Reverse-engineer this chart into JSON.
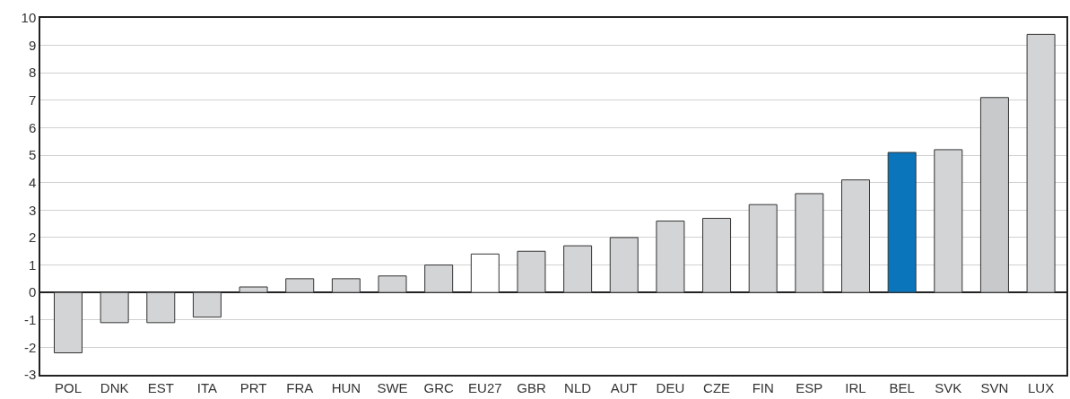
{
  "chart_data": {
    "type": "bar",
    "categories": [
      "POL",
      "DNK",
      "EST",
      "ITA",
      "PRT",
      "FRA",
      "HUN",
      "SWE",
      "GRC",
      "EU27",
      "GBR",
      "NLD",
      "AUT",
      "DEU",
      "CZE",
      "FIN",
      "ESP",
      "IRL",
      "BEL",
      "SVK",
      "SVN",
      "LUX"
    ],
    "values": [
      -2.2,
      -1.1,
      -1.1,
      -0.9,
      0.2,
      0.5,
      0.5,
      0.6,
      1.0,
      1.4,
      1.5,
      1.7,
      2.0,
      2.6,
      2.7,
      3.2,
      3.6,
      4.1,
      5.1,
      5.2,
      7.1,
      9.4
    ],
    "colors": [
      "#d3d4d6",
      "#d3d4d6",
      "#d3d4d6",
      "#d3d4d6",
      "#d3d4d6",
      "#d3d4d6",
      "#d3d4d6",
      "#d3d4d6",
      "#d3d4d6",
      "#ffffff",
      "#d3d4d6",
      "#d3d4d6",
      "#d3d4d6",
      "#d3d4d6",
      "#d3d4d6",
      "#d3d4d6",
      "#d3d4d6",
      "#d3d4d6",
      "#0b75bb",
      "#d3d4d6",
      "#c8c9cb",
      "#d3d4d6"
    ],
    "ylim": [
      -3,
      10
    ],
    "yticks": [
      -3,
      -2,
      -1,
      0,
      1,
      2,
      3,
      4,
      5,
      6,
      7,
      8,
      9,
      10
    ],
    "grid": "y"
  }
}
